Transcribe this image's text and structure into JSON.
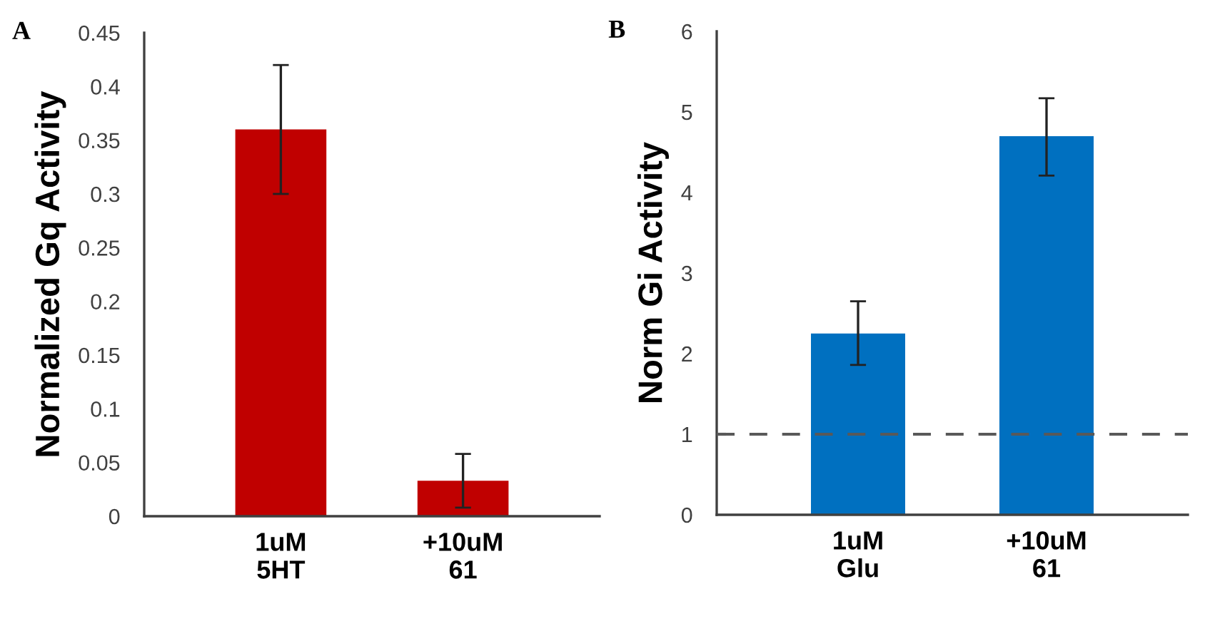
{
  "chart_data": [
    {
      "type": "bar",
      "title": "A",
      "ylabel": "Normalized Gq Activity",
      "categories": [
        "1uM\n5HT",
        "+10uM\n61"
      ],
      "values": [
        0.36,
        0.033
      ],
      "errors": [
        [
          0.3,
          0.42
        ],
        [
          0.008,
          0.058
        ]
      ],
      "color": "#c00000",
      "ylim": [
        0,
        0.45
      ],
      "yticks": [
        0,
        0.05,
        0.1,
        0.15,
        0.2,
        0.25,
        0.3,
        0.35,
        0.4,
        0.45
      ]
    },
    {
      "type": "bar",
      "title": "B",
      "ylabel": "Norm Gi Activity",
      "categories": [
        "1uM\nGlu",
        "+10uM\n61"
      ],
      "values": [
        2.25,
        4.7
      ],
      "errors": [
        [
          1.86,
          2.65
        ],
        [
          4.21,
          5.17
        ]
      ],
      "color": "#0070c0",
      "ylim": [
        0,
        6
      ],
      "yticks": [
        0,
        1,
        2,
        3,
        4,
        5,
        6
      ],
      "ref_lines": [
        {
          "axis": "y",
          "value": 1,
          "color": "#595959",
          "line_style": "dashed"
        }
      ]
    }
  ]
}
